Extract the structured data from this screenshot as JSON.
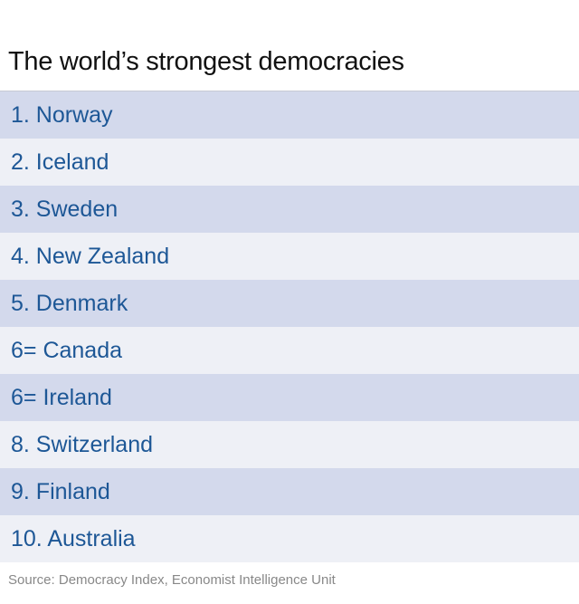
{
  "title": "The world’s strongest democracies",
  "rows": [
    "1. Norway",
    "2. Iceland",
    "3. Sweden",
    "4. New Zealand",
    "5. Denmark",
    "6= Canada",
    "6= Ireland",
    "8. Switzerland",
    "9. Finland",
    "10. Australia"
  ],
  "source": "Source: Democracy Index, Economist Intelligence Unit"
}
